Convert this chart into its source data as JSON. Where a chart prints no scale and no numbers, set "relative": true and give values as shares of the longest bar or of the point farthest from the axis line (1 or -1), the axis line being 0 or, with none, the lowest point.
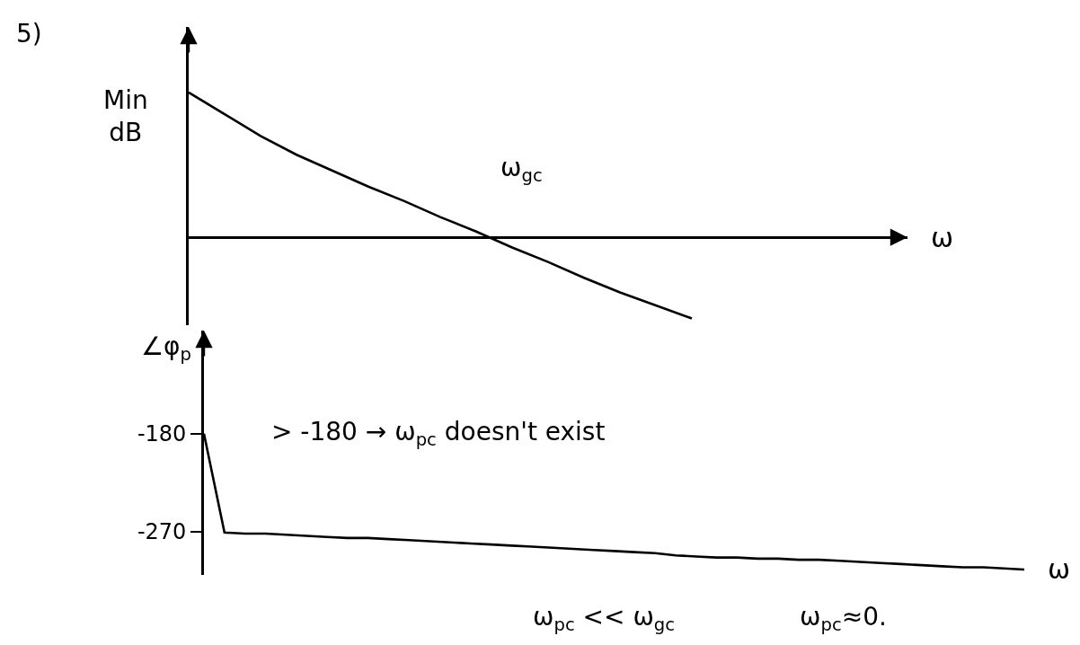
{
  "chart_data": [
    {
      "type": "line",
      "relative": true,
      "tick_labels": false,
      "color": "#000000",
      "xlabel": "ω",
      "ylabel": "Min\ndB",
      "categories": [
        null,
        null,
        null,
        null,
        null,
        null,
        null,
        null,
        null,
        null,
        null,
        null,
        null,
        null,
        null,
        null,
        null,
        null,
        null,
        null,
        null
      ],
      "values": [
        1,
        0.85,
        0.7,
        0.57,
        0.46,
        0.35,
        0.25,
        0.14,
        0.04,
        -0.07,
        -0.17,
        -0.28,
        -0.38,
        -0.47,
        -0.56,
        null,
        null,
        null,
        null,
        null,
        null
      ],
      "annotations": [
        "5)",
        "ω$_{gc}$"
      ]
    },
    {
      "type": "line",
      "tick_labels": "y",
      "color": "#000000",
      "xlabel": "ω",
      "ylabel": "∠φ$_{p}$",
      "ylim": [
        -310,
        -85
      ],
      "yticks": [
        -180,
        -270
      ],
      "categories": [
        null,
        null,
        null,
        null,
        null,
        null,
        null,
        null,
        null,
        null,
        null,
        null,
        null,
        null,
        null,
        null,
        null,
        null,
        null,
        null,
        null,
        null,
        null,
        null,
        null,
        null,
        null,
        null,
        null,
        null,
        null,
        null,
        null,
        null,
        null,
        null,
        null,
        null,
        null,
        null,
        null
      ],
      "values": [
        -180,
        -271,
        -272,
        -272,
        -273,
        -274,
        -275,
        -276,
        -276,
        -277,
        -278,
        -279,
        -280,
        -281,
        -282,
        -283,
        -284,
        -285,
        -286,
        -287,
        -288,
        -289,
        -290,
        -292,
        -293,
        -294,
        -294,
        -295,
        -295,
        -296,
        -296,
        -297,
        -298,
        -299,
        -300,
        -301,
        -302,
        -303,
        -303,
        -304,
        -305
      ],
      "annotations": [
        "> -180 → ω$_{pc}$ doesn't exist",
        "ω$_{pc}$ << ω$_{gc}$",
        "ω$_{pc}$≈0."
      ]
    }
  ]
}
